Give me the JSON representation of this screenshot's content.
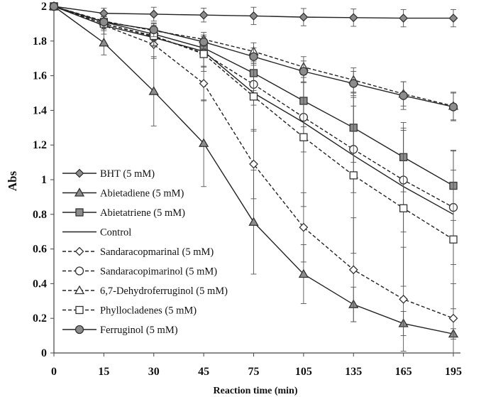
{
  "chart_data": {
    "type": "line",
    "title": "",
    "xlabel": "Reaction time (min)",
    "ylabel": "Abs",
    "categories": [
      "0",
      "15",
      "30",
      "45",
      "75",
      "105",
      "135",
      "165",
      "195"
    ],
    "ylim": [
      0,
      2
    ],
    "yticks": [
      "0",
      "0.2",
      "0.4",
      "0.6",
      "0.8",
      "1",
      "1.2",
      "1.4",
      "1.6",
      "1.8",
      "2"
    ],
    "legend_position": "left",
    "series": [
      {
        "name": "BHT (5 mM)",
        "marker": "diamond",
        "dash": "solid",
        "fill": "#8c8c8c",
        "values": [
          2.0,
          1.96,
          1.955,
          1.95,
          1.945,
          1.938,
          1.935,
          1.932,
          1.932
        ],
        "errors": [
          0.02,
          0.03,
          0.04,
          0.04,
          0.05,
          0.05,
          0.05,
          0.05,
          0.05
        ]
      },
      {
        "name": "Abietadiene (5 mM)",
        "marker": "triangle",
        "dash": "solid",
        "fill": "#8c8c8c",
        "values": [
          2.0,
          1.79,
          1.51,
          1.21,
          0.755,
          0.455,
          0.28,
          0.17,
          0.11
        ],
        "errors": [
          0.02,
          0.07,
          0.2,
          0.25,
          0.3,
          0.17,
          0.1,
          0.07,
          0.03
        ]
      },
      {
        "name": "Abietatriene (5 mM)",
        "marker": "square",
        "dash": "solid",
        "fill": "#8c8c8c",
        "values": [
          2.0,
          1.91,
          1.84,
          1.76,
          1.615,
          1.455,
          1.3,
          1.13,
          0.965
        ],
        "errors": [
          0.02,
          0.03,
          0.04,
          0.05,
          0.1,
          0.15,
          0.2,
          0.2,
          0.2
        ]
      },
      {
        "name": "Control",
        "marker": "none",
        "dash": "solid",
        "fill": "none",
        "values": [
          2.0,
          1.89,
          1.82,
          1.74,
          1.5,
          1.33,
          1.14,
          0.96,
          0.8
        ],
        "errors": [
          0,
          0,
          0,
          0,
          0,
          0,
          0,
          0,
          0
        ]
      },
      {
        "name": "Sandaracopmarinal (5 mM)",
        "marker": "diamond",
        "dash": "dashed",
        "fill": "#ffffff",
        "values": [
          2.0,
          1.89,
          1.78,
          1.555,
          1.09,
          0.725,
          0.48,
          0.31,
          0.2
        ],
        "errors": [
          0.02,
          0.05,
          0.08,
          0.1,
          0.2,
          0.2,
          0.3,
          0.3,
          0.2
        ]
      },
      {
        "name": "Sandaracopimarinol (5 mM)",
        "marker": "circle",
        "dash": "dashed",
        "fill": "#ffffff",
        "values": [
          2.0,
          1.9,
          1.825,
          1.73,
          1.55,
          1.36,
          1.175,
          0.998,
          0.84
        ],
        "errors": [
          0.02,
          0.03,
          0.05,
          0.08,
          0.12,
          0.2,
          0.25,
          0.3,
          0.33
        ]
      },
      {
        "name": "6,7-Dehydroferruginol (5 mM)",
        "marker": "triangle",
        "dash": "dashed",
        "fill": "#ffffff",
        "values": [
          2.0,
          1.915,
          1.86,
          1.81,
          1.74,
          1.65,
          1.575,
          1.495,
          1.425
        ],
        "errors": [
          0.02,
          0.03,
          0.04,
          0.04,
          0.05,
          0.06,
          0.07,
          0.07,
          0.08
        ]
      },
      {
        "name": "Phyllocladenes (5 mM)",
        "marker": "square",
        "dash": "dashed",
        "fill": "#ffffff",
        "values": [
          2.0,
          1.9,
          1.83,
          1.725,
          1.48,
          1.245,
          1.025,
          0.835,
          0.655
        ],
        "errors": [
          0.02,
          0.03,
          0.06,
          0.1,
          0.2,
          0.4,
          0.45,
          0.45,
          0.4
        ]
      },
      {
        "name": "Ferruginol (5 mM)",
        "marker": "circle",
        "dash": "solid",
        "fill": "#8c8c8c",
        "values": [
          2.0,
          1.91,
          1.865,
          1.795,
          1.71,
          1.625,
          1.555,
          1.485,
          1.42
        ],
        "errors": [
          0.02,
          0.03,
          0.04,
          0.04,
          0.05,
          0.06,
          0.07,
          0.08,
          0.08
        ]
      }
    ]
  }
}
